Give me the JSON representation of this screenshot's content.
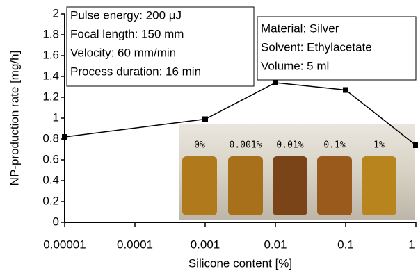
{
  "chart_data": {
    "type": "line",
    "x_label": "Silicone content [%]",
    "y_label": "NP-production rate [mg/h]",
    "xscale": "log",
    "x": [
      1e-05,
      0.001,
      0.01,
      0.1,
      1
    ],
    "series": [
      {
        "color": "#000000",
        "values": [
          0.82,
          0.99,
          1.34,
          1.27,
          0.74
        ]
      }
    ],
    "xlim": [
      1e-05,
      1
    ],
    "xticks": [
      1e-05,
      0.0001,
      0.001,
      0.01,
      0.1,
      1
    ],
    "ylim": [
      0,
      2
    ],
    "yticks": [
      0,
      0.2,
      0.4,
      0.6,
      0.8,
      1,
      1.2,
      1.4,
      1.6,
      1.8,
      2
    ],
    "annotation_boxes": [
      [
        "Pulse energy: 200 μJ",
        "Focal length: 150 mm",
        "Velocity: 60 mm/min",
        "Process duration: 16 min"
      ],
      [
        "Material: Silver",
        "Solvent: Ethylacetate",
        "Volume: 5 ml"
      ]
    ],
    "inset_labels": [
      "0%",
      "0.001%",
      "0.01%",
      "0.1%",
      "1%"
    ]
  }
}
